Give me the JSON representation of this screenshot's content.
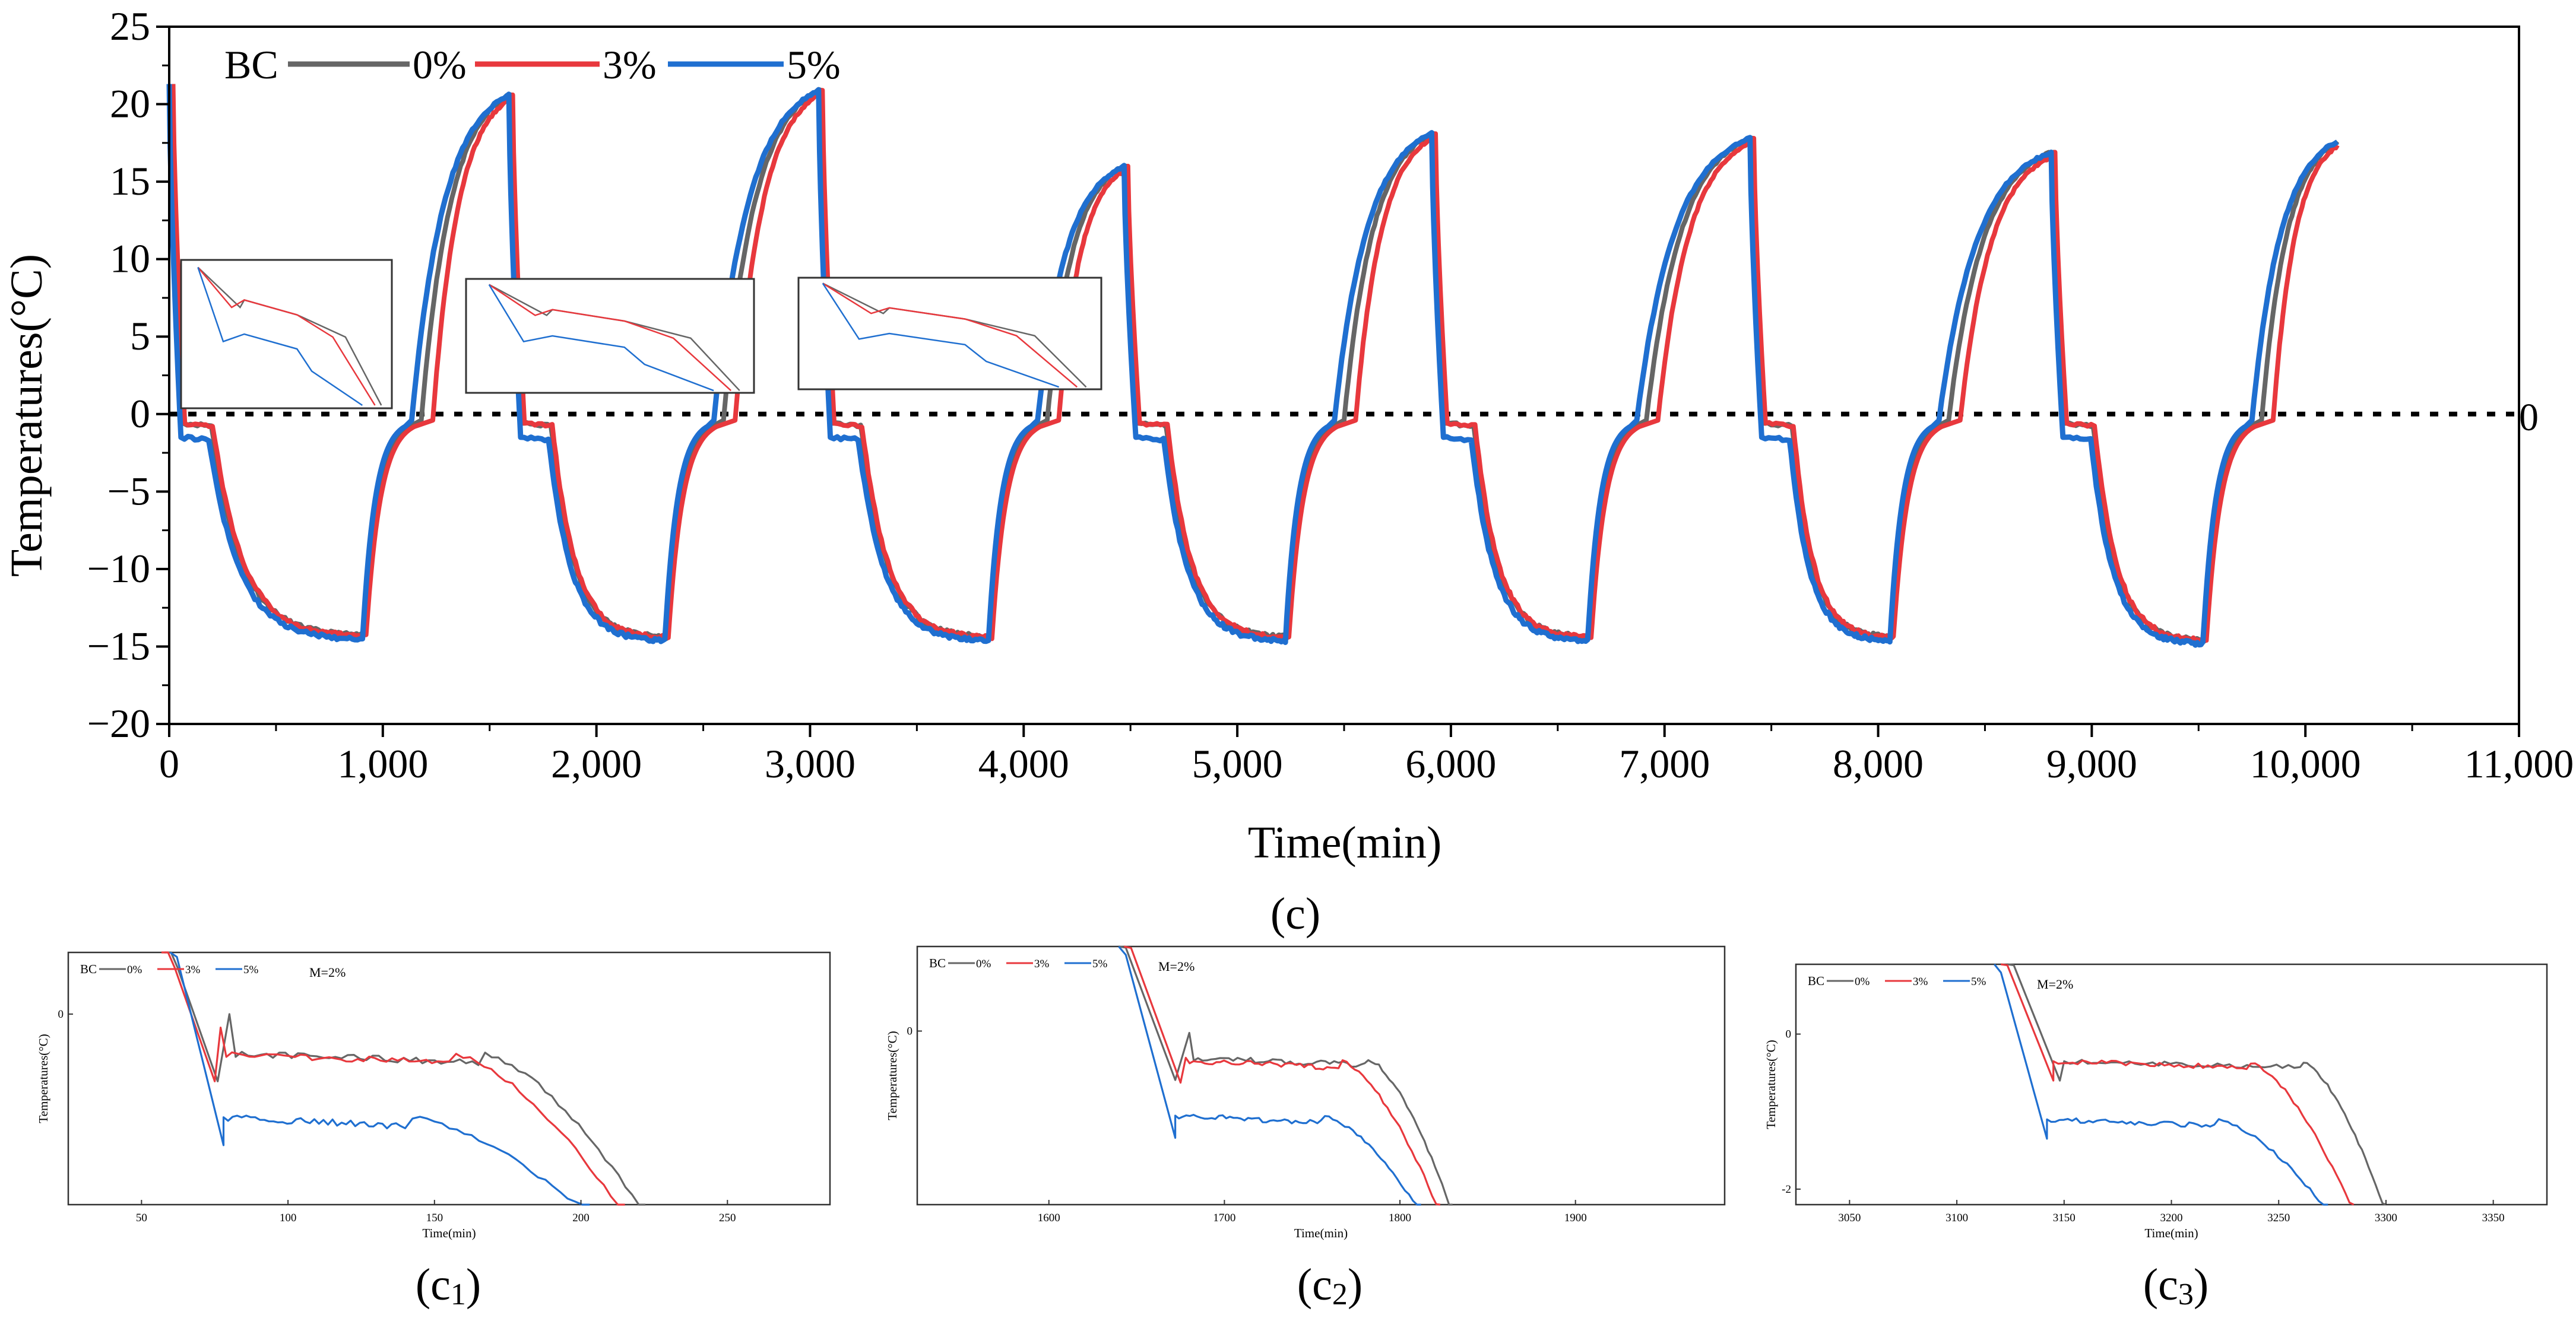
{
  "colors": {
    "bc0": "#666666",
    "bc3": "#e8383d",
    "bc5": "#1f6fd0",
    "axis": "#000000",
    "zero": "#000000"
  },
  "chart_data": [
    {
      "id": "main",
      "type": "line",
      "caption": "(c)",
      "title": "",
      "xlabel": "Time(min)",
      "ylabel": "Temperatures(°C)",
      "xlim": [
        0,
        11000
      ],
      "ylim": [
        -20,
        25
      ],
      "xticks": [
        0,
        1000,
        2000,
        3000,
        4000,
        5000,
        6000,
        7000,
        8000,
        9000,
        10000,
        11000
      ],
      "xtick_labels": [
        "0",
        "1,000",
        "2,000",
        "3,000",
        "4,000",
        "5,000",
        "6,000",
        "7,000",
        "8,000",
        "9,000",
        "10,000",
        "11,000"
      ],
      "yticks": [
        -20,
        -15,
        -10,
        -5,
        0,
        5,
        10,
        15,
        20,
        25
      ],
      "ytick_labels": [
        "−20",
        "−15",
        "−10",
        "−5",
        "0",
        "5",
        "10",
        "15",
        "20",
        "25"
      ],
      "reference_line": {
        "y": 0,
        "label": "0",
        "style": "dotted"
      },
      "legend": {
        "title": "BC",
        "placement": "top-left",
        "entries": [
          "0%",
          "3%",
          "5%"
        ]
      },
      "cycles": [
        {
          "start": 0,
          "peak_time": 1590,
          "peak": 20.6,
          "min": -14.6,
          "warm_start": 905
        },
        {
          "start": 1590,
          "peak_time": 3040,
          "peak": 20.9,
          "min": -14.7,
          "warm_start": 2320
        },
        {
          "start": 3040,
          "peak_time": 4470,
          "peak": 16.0,
          "min": -14.7,
          "warm_start": 3835
        },
        {
          "start": 4470,
          "peak_time": 5910,
          "peak": 18.1,
          "min": -14.7,
          "warm_start": 5225
        },
        {
          "start": 5910,
          "peak_time": 7400,
          "peak": 17.8,
          "min": -14.7,
          "warm_start": 6640
        },
        {
          "start": 7400,
          "peak_time": 8810,
          "peak": 16.9,
          "min": -14.7,
          "warm_start": 8055
        },
        {
          "start": 8810,
          "peak_time": 10150,
          "peak": 17.6,
          "min": -14.9,
          "warm_start": 9520
        }
      ],
      "series": [
        {
          "name": "0%",
          "plateau": -0.6,
          "rise_delay": 25,
          "cool_delay": 12,
          "offset": 0.25
        },
        {
          "name": "3%",
          "plateau": -0.6,
          "rise_delay": 55,
          "cool_delay": 18,
          "offset": 0.2
        },
        {
          "name": "5%",
          "plateau": -1.5,
          "rise_delay": 0,
          "cool_delay": 0,
          "offset": 0.0
        }
      ]
    },
    {
      "id": "c1",
      "type": "line",
      "caption_letter": "c",
      "caption_sub": "1",
      "xlabel": "Time(min)",
      "ylabel": "Temperatures(°C)",
      "annotation": "M=2%",
      "legend": {
        "title": "BC",
        "entries": [
          "0%",
          "3%",
          "5%"
        ]
      },
      "xlim": [
        25,
        285
      ],
      "ylim": [
        -1.7,
        0.55
      ],
      "xticks": [
        50,
        100,
        150,
        200,
        250
      ],
      "yticks": [
        0
      ],
      "series": [
        {
          "name": "0%",
          "drop_end": 76,
          "plateau": -0.35,
          "spike_at": 80,
          "spike": 0.0,
          "decline_start": 165,
          "cross_end": 222
        },
        {
          "name": "3%",
          "drop_end": 75,
          "plateau": -0.35,
          "spike_at": 77,
          "spike": -0.12,
          "decline_start": 155,
          "cross_end": 215
        },
        {
          "name": "5%",
          "drop_end": 78,
          "plateau": -0.92,
          "spike_at": 78,
          "spike": -0.92,
          "decline_start": 140,
          "cross_end": 203
        }
      ]
    },
    {
      "id": "c2",
      "type": "line",
      "caption_letter": "c",
      "caption_sub": "2",
      "xlabel": "Time(min)",
      "ylabel": "Temperatures(°C)",
      "annotation": "M=2%",
      "legend": {
        "title": "BC",
        "entries": [
          "0%",
          "3%",
          "5%"
        ]
      },
      "xlim": [
        1525,
        1985
      ],
      "ylim": [
        -1.95,
        0.95
      ],
      "xticks": [
        1600,
        1700,
        1800,
        1900
      ],
      "yticks": [
        0
      ],
      "series": [
        {
          "name": "0%",
          "drop_end": 1672,
          "plateau": -0.3,
          "spike_at": 1680,
          "spike": -0.02,
          "decline_start": 1780,
          "cross_end": 1830
        },
        {
          "name": "3%",
          "drop_end": 1675,
          "plateau": -0.33,
          "spike_at": 1678,
          "spike": -0.3,
          "decline_start": 1765,
          "cross_end": 1823
        },
        {
          "name": "5%",
          "drop_end": 1672,
          "plateau": -0.95,
          "spike_at": 1672,
          "spike": -0.95,
          "decline_start": 1755,
          "cross_end": 1812
        }
      ]
    },
    {
      "id": "c3",
      "type": "line",
      "caption_letter": "c",
      "caption_sub": "3",
      "xlabel": "Time(min)",
      "ylabel": "Temperatures(°C)",
      "annotation": "M=2%",
      "legend": {
        "title": "BC",
        "entries": [
          "0%",
          "3%",
          "5%"
        ]
      },
      "xlim": [
        3025,
        3375
      ],
      "ylim": [
        -2.2,
        0.9
      ],
      "xticks": [
        3050,
        3100,
        3150,
        3200,
        3250,
        3300,
        3350
      ],
      "yticks": [
        0,
        -2
      ],
      "series": [
        {
          "name": "0%",
          "drop_end": 3148,
          "plateau": -0.35,
          "spike_at": 3150,
          "spike": -0.35,
          "decline_start": 3260,
          "cross_end": 3300
        },
        {
          "name": "3%",
          "drop_end": 3145,
          "plateau": -0.35,
          "spike_at": 3145,
          "spike": -0.35,
          "decline_start": 3235,
          "cross_end": 3285
        },
        {
          "name": "5%",
          "drop_end": 3142,
          "plateau": -1.1,
          "spike_at": 3142,
          "spike": -1.1,
          "decline_start": 3220,
          "cross_end": 3273
        }
      ]
    }
  ]
}
